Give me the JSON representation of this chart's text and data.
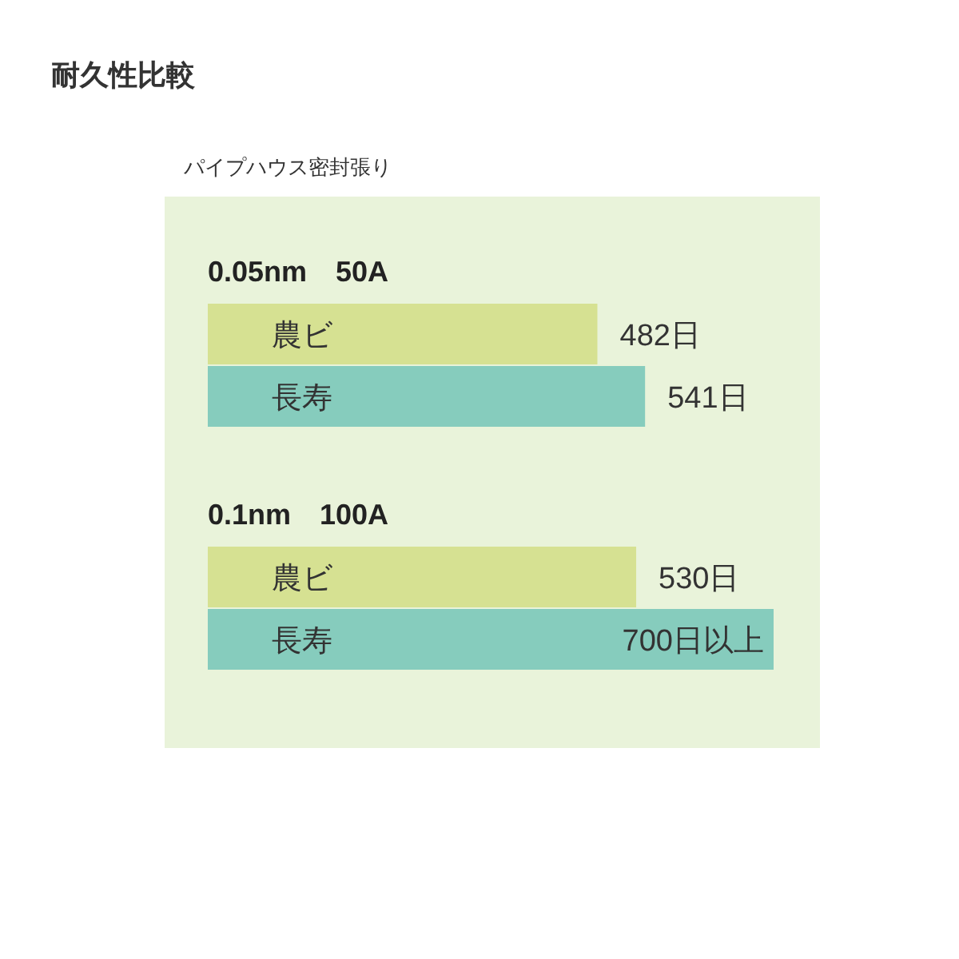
{
  "chart_data": {
    "type": "bar",
    "orientation": "horizontal",
    "title": "耐久性比較",
    "subtitle": "パイプハウス密封張り",
    "categories": [
      "0.05nm　50A",
      "0.1nm　100A"
    ],
    "legend": false,
    "series": [
      {
        "name": "農ビ",
        "color": "#d6e192",
        "values": [
          482,
          530
        ],
        "value_labels": [
          "482日",
          "530日"
        ]
      },
      {
        "name": "長寿",
        "color": "#86ccbd",
        "values": [
          541,
          700
        ],
        "value_labels": [
          "541日",
          "700日以上"
        ]
      }
    ]
  }
}
